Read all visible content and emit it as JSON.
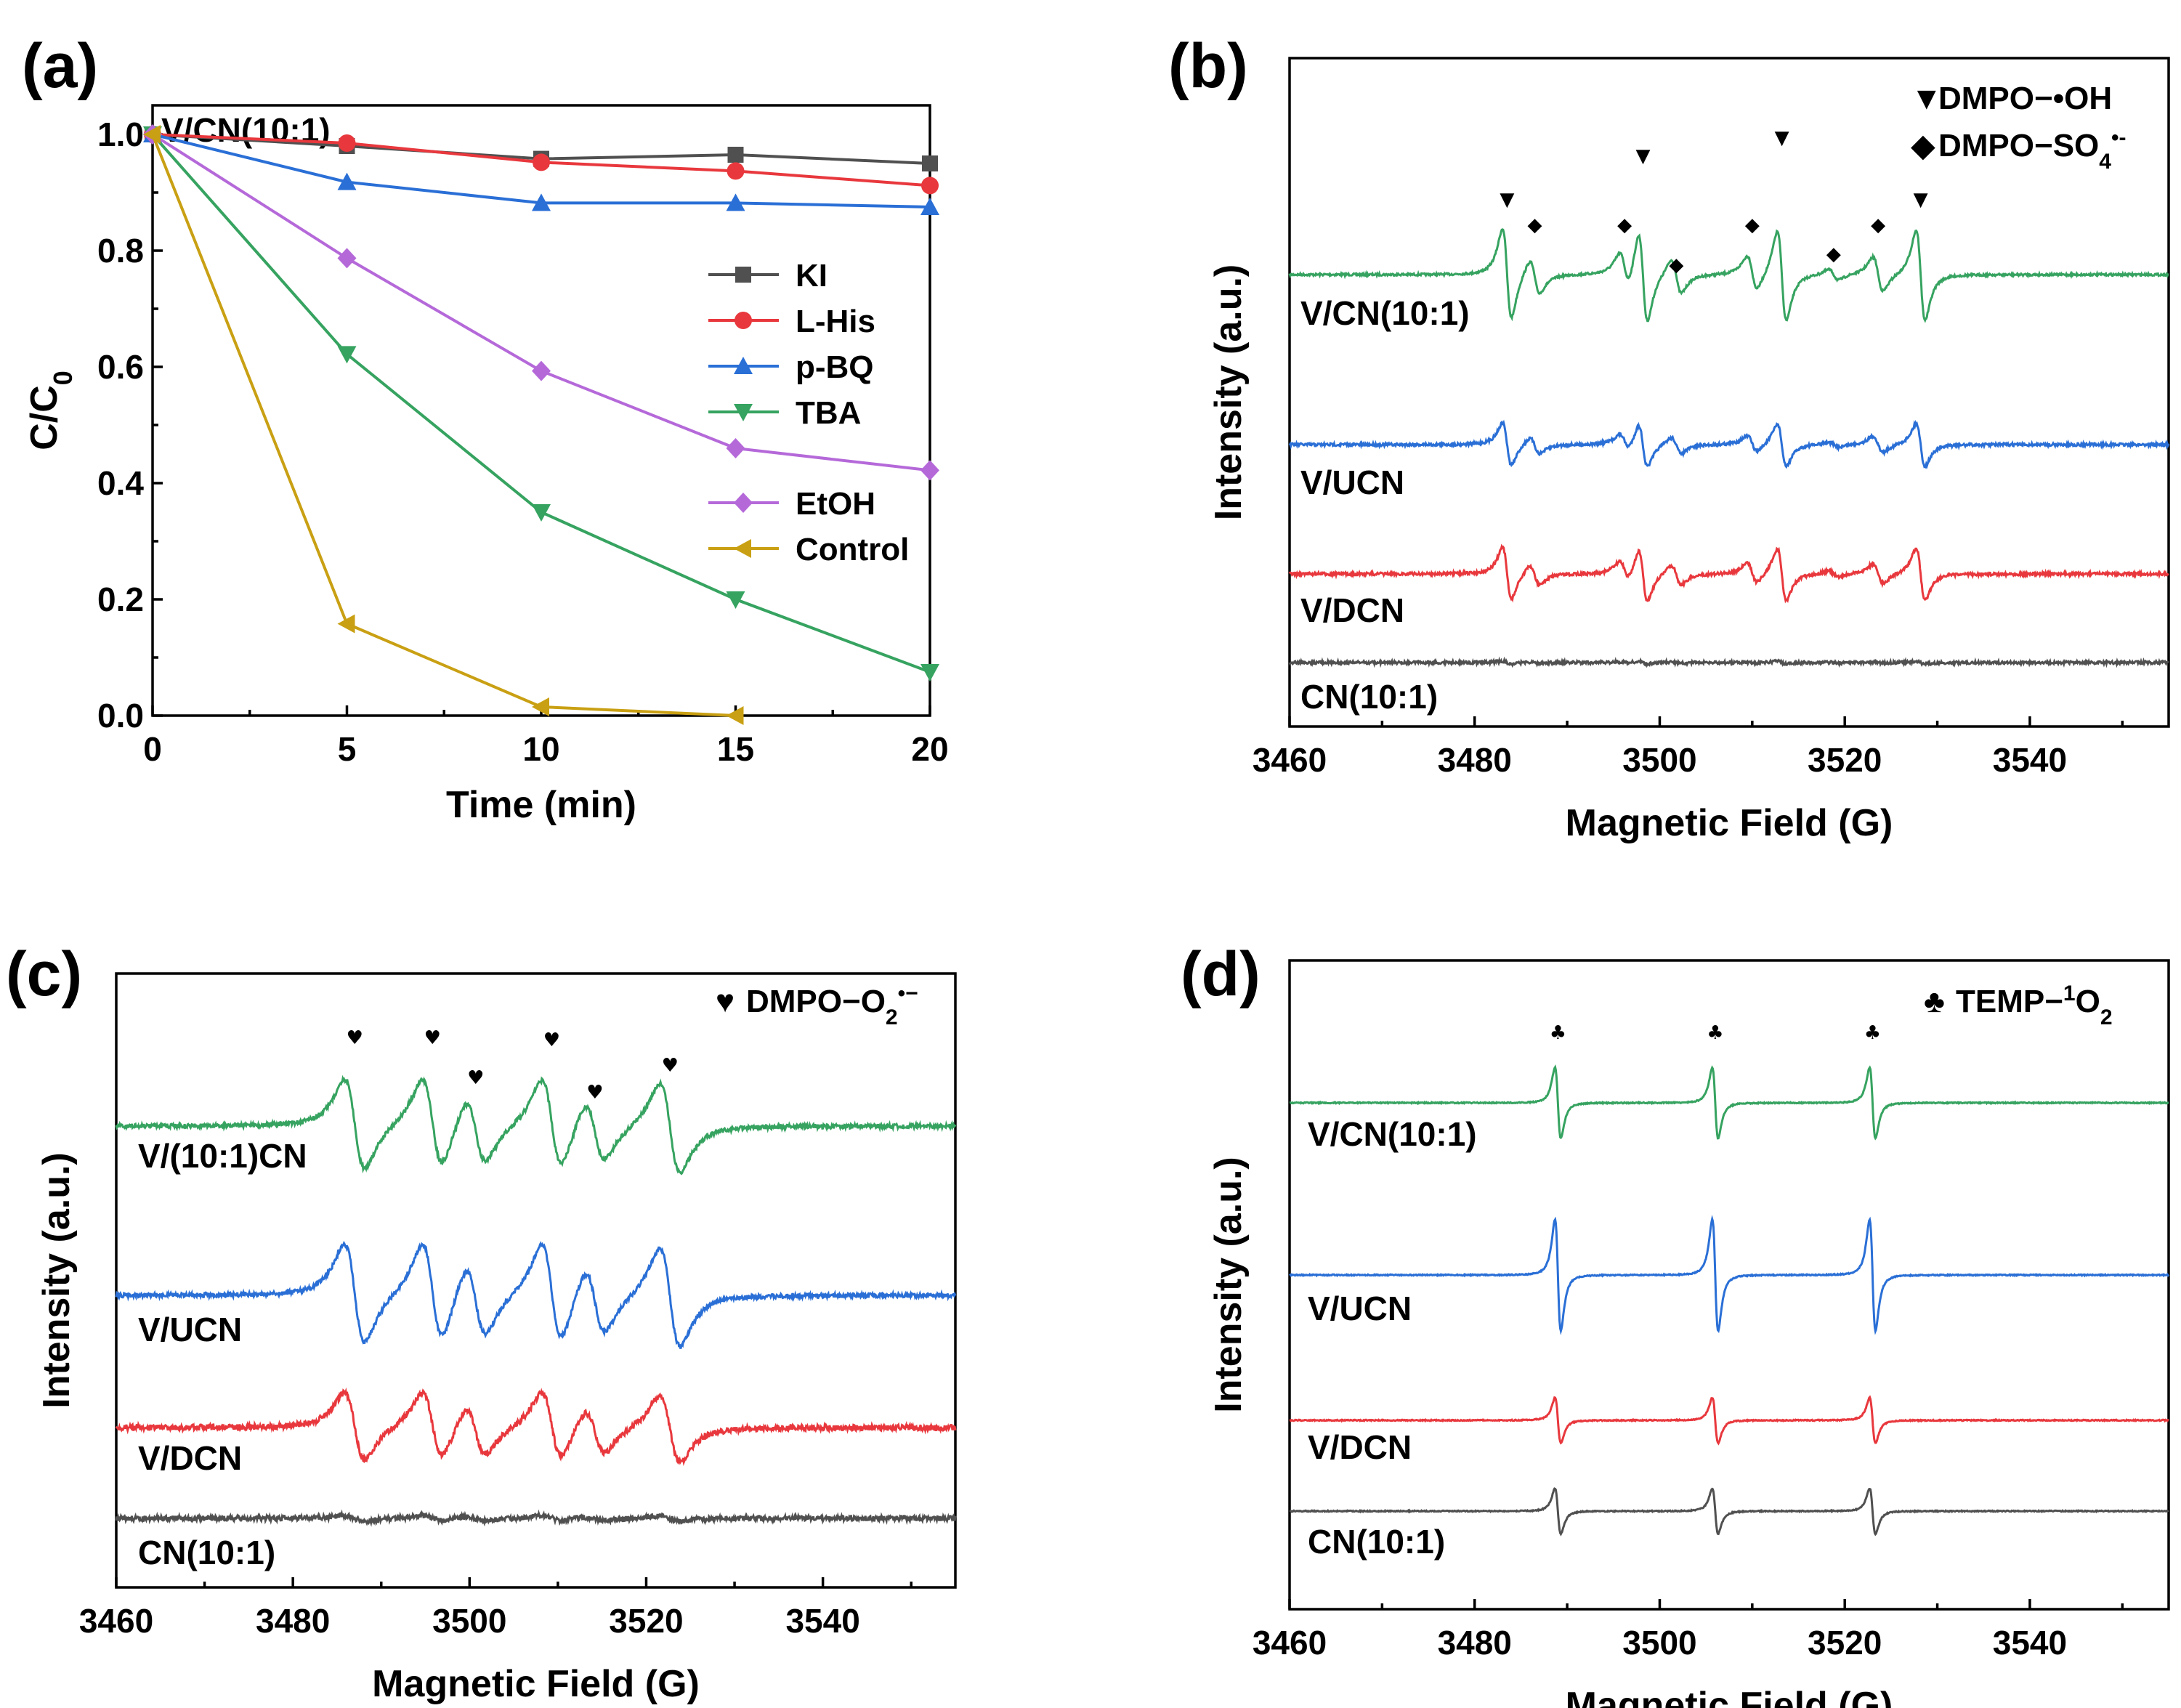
{
  "chart_data": [
    {
      "id": "a",
      "type": "line",
      "panel_label": "(a)",
      "annotation": "V/CN(10:1)",
      "xlabel": "Time (min)",
      "ylabel": "C/C",
      "ylabel_sub": "0",
      "xlim": [
        0,
        20
      ],
      "ylim": [
        0,
        1.0
      ],
      "xticks": [
        0,
        5,
        10,
        15,
        20
      ],
      "yticks": [
        "0.0",
        "0.2",
        "0.4",
        "0.6",
        "0.8",
        "1.0"
      ],
      "x": [
        0,
        5,
        10,
        15,
        20
      ],
      "series": [
        {
          "name": "KI",
          "color": "#505050",
          "marker": "square",
          "values": [
            1.0,
            0.98,
            0.958,
            0.965,
            0.95
          ]
        },
        {
          "name": "L-His",
          "color": "#e8383d",
          "marker": "circle",
          "values": [
            1.0,
            0.985,
            0.952,
            0.937,
            0.912
          ]
        },
        {
          "name": "p-BQ",
          "color": "#2a6fd6",
          "marker": "triangle-up",
          "values": [
            1.0,
            0.918,
            0.882,
            0.882,
            0.875
          ]
        },
        {
          "name": "TBA",
          "color": "#36a360",
          "marker": "triangle-down",
          "values": [
            1.0,
            0.622,
            0.35,
            0.2,
            0.075
          ]
        },
        {
          "name": "EtOH",
          "color": "#b569d9",
          "marker": "diamond",
          "values": [
            1.0,
            0.787,
            0.593,
            0.46,
            0.422
          ]
        },
        {
          "name": "Control",
          "color": "#c9a013",
          "marker": "triangle-left",
          "values": [
            1.0,
            0.158,
            0.015,
            0.0,
            null
          ]
        }
      ]
    },
    {
      "id": "b",
      "type": "line",
      "panel_label": "(b)",
      "xlabel": "Magnetic Field (G)",
      "ylabel": "Intensity (a.u.)",
      "xlim": [
        3460,
        3555
      ],
      "xticks": [
        3460,
        3480,
        3500,
        3520,
        3540
      ],
      "legend": [
        {
          "symbol": "▼",
          "text": "DMPO−•OH"
        },
        {
          "symbol": "◆",
          "text": "DMPO−SO",
          "sub": "4",
          "sup": "•-"
        }
      ],
      "series": [
        {
          "name": "V/CN(10:1)",
          "color": "#36a360"
        },
        {
          "name": "V/UCN",
          "color": "#2a6fd6"
        },
        {
          "name": "V/DCN",
          "color": "#e8383d"
        },
        {
          "name": "CN(10:1)",
          "color": "#505050"
        }
      ],
      "oh_peaks": [
        3483.5,
        3498.2,
        3513.2,
        3528.2
      ],
      "so4_peaks": [
        3486.5,
        3496.2,
        3501.8,
        3510.0,
        3518.8,
        3523.6
      ]
    },
    {
      "id": "c",
      "type": "line",
      "panel_label": "(c)",
      "xlabel": "Magnetic Field (G)",
      "ylabel": "Intensity (a.u.)",
      "xlim": [
        3460,
        3555
      ],
      "xticks": [
        3460,
        3480,
        3500,
        3520,
        3540
      ],
      "legend": [
        {
          "symbol": "♥",
          "text": "DMPO−O",
          "sub": "2",
          "sup": "•−"
        }
      ],
      "series": [
        {
          "name": "V/(10:1)CN",
          "color": "#36a360"
        },
        {
          "name": "V/UCN",
          "color": "#2a6fd6"
        },
        {
          "name": "V/DCN",
          "color": "#e8383d"
        },
        {
          "name": "CN(10:1)",
          "color": "#505050"
        }
      ],
      "peaks": [
        3487.0,
        3495.8,
        3500.7,
        3509.3,
        3514.2,
        3522.7
      ]
    },
    {
      "id": "d",
      "type": "line",
      "panel_label": "(d)",
      "xlabel": "Magnetic Field (G)",
      "ylabel": "Intensity (a.u.)",
      "xlim": [
        3460,
        3555
      ],
      "xticks": [
        3460,
        3480,
        3500,
        3520,
        3540
      ],
      "legend": [
        {
          "symbol": "♣",
          "text": "TEMP−",
          "sup_pre": "1",
          "after": "O",
          "sub": "2"
        }
      ],
      "series": [
        {
          "name": "V/CN(10:1)",
          "color": "#36a360"
        },
        {
          "name": "V/UCN",
          "color": "#2a6fd6"
        },
        {
          "name": "V/DCN",
          "color": "#e8383d"
        },
        {
          "name": "CN(10:1)",
          "color": "#505050"
        }
      ],
      "peaks": [
        3489.0,
        3506.0,
        3523.0
      ]
    }
  ]
}
